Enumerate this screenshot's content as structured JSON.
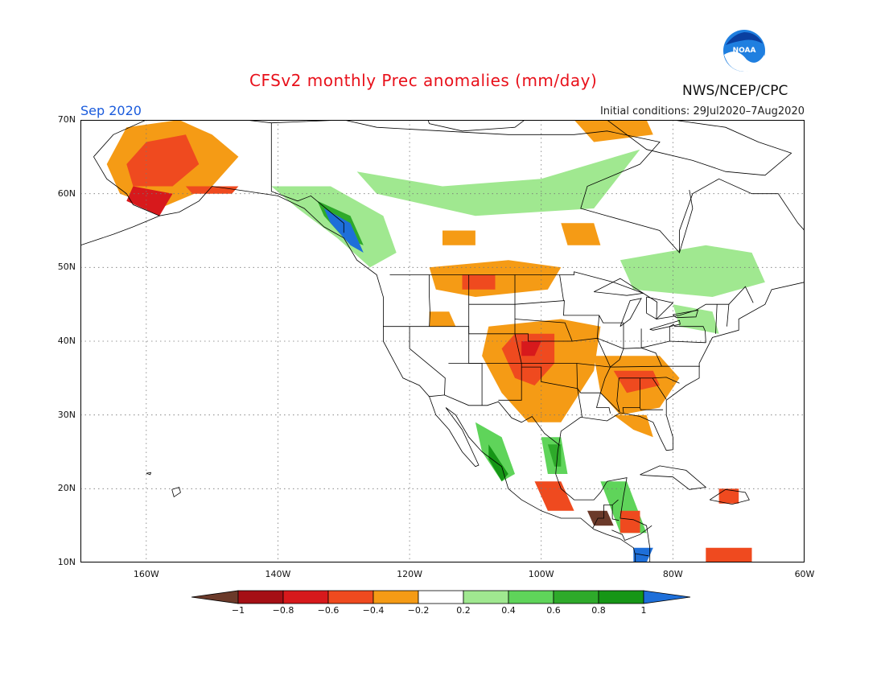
{
  "title": "CFSv2 monthly Prec anomalies (mm/day)",
  "month": "Sep 2020",
  "initial_conditions": "Initial conditions: 29Jul2020–7Aug2020",
  "organization": "NWS/NCEP/CPC",
  "logo": {
    "icon": "noaa-logo-icon",
    "text": "NOAA"
  },
  "map": {
    "extent": {
      "lon_min": -170,
      "lon_max": -60,
      "lat_min": 10,
      "lat_max": 70
    },
    "lat_labels": [
      {
        "lat": 70,
        "label": "70N"
      },
      {
        "lat": 60,
        "label": "60N"
      },
      {
        "lat": 50,
        "label": "50N"
      },
      {
        "lat": 40,
        "label": "40N"
      },
      {
        "lat": 30,
        "label": "30N"
      },
      {
        "lat": 20,
        "label": "20N"
      },
      {
        "lat": 10,
        "label": "10N"
      }
    ],
    "lon_labels": [
      {
        "lon": -160,
        "label": "160W"
      },
      {
        "lon": -140,
        "label": "140W"
      },
      {
        "lon": -120,
        "label": "120W"
      },
      {
        "lon": -100,
        "label": "100W"
      },
      {
        "lon": -80,
        "label": "80W"
      },
      {
        "lon": -60,
        "label": "60W"
      }
    ],
    "grid": true
  },
  "colorbar": {
    "colors": [
      "#6b3a2a",
      "#a50f15",
      "#d7191c",
      "#ef4a1f",
      "#f59b15",
      "#ffffff",
      "#a0e890",
      "#5fd45a",
      "#2eaa2a",
      "#169616",
      "#1e6fd9"
    ],
    "labels": [
      "−1",
      "−0.8",
      "−0.6",
      "−0.4",
      "−0.2",
      "0.2",
      "0.4",
      "0.6",
      "0.8",
      "1"
    ]
  }
}
